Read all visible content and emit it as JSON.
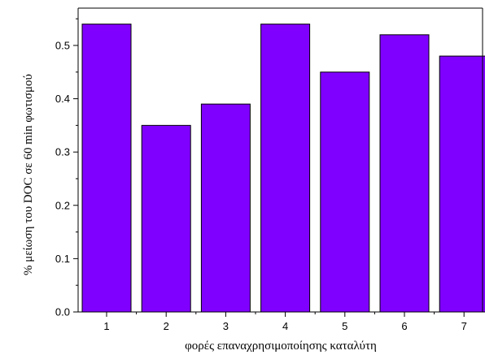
{
  "chart_data": {
    "type": "bar",
    "categories": [
      "1",
      "2",
      "3",
      "4",
      "5",
      "6",
      "7"
    ],
    "values": [
      0.54,
      0.35,
      0.39,
      0.54,
      0.45,
      0.52,
      0.48
    ],
    "title": "",
    "xlabel": "φορές επαναχρησιμοποίησης καταλύτη",
    "ylabel": "% μείωση του DOC σε 60 min φωτισμού",
    "ylim": [
      0,
      0.57
    ],
    "yticks": [
      "0.0",
      "0.1",
      "0.2",
      "0.3",
      "0.4",
      "0.5"
    ],
    "bar_color": "#8000ff",
    "grid": false
  }
}
